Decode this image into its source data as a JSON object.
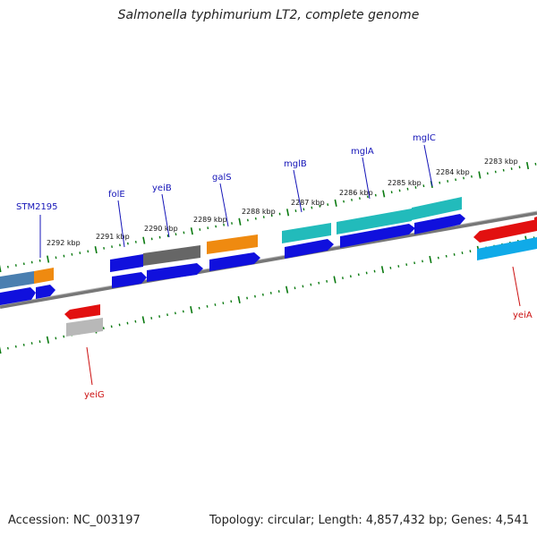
{
  "title": "Salmonella typhimurium LT2, complete genome",
  "footer": {
    "accession": "Accession: NC_003197",
    "summary": "Topology: circular; Length: 4,857,432 bp; Genes: 4,541"
  },
  "colors": {
    "backbone": "#777777",
    "tick": "#0a7a10",
    "label_forward": "#1515b8",
    "label_reverse": "#cc1111",
    "gene_blue": "#1010dd",
    "gene_orange": "#ef8a10",
    "gene_cyan": "#22bbbb",
    "gene_gray": "#666666",
    "gene_steelblue": "#4a7fb0",
    "gene_red": "#e21010",
    "gene_lightgray": "#b8b8b8",
    "gene_skyblue": "#10aae8"
  },
  "kbp_labels": [
    "2292 kbp",
    "2291 kbp",
    "2290 kbp",
    "2289 kbp",
    "2288 kbp",
    "2287 kbp",
    "2286 kbp",
    "2285 kbp",
    "2284 kbp",
    "2283 kbp"
  ],
  "gene_labels_forward": [
    "STM2195",
    "folE",
    "yeiB",
    "galS",
    "mglB",
    "mglA",
    "mglC"
  ],
  "gene_labels_reverse": [
    "yeiG",
    "yeiA"
  ]
}
